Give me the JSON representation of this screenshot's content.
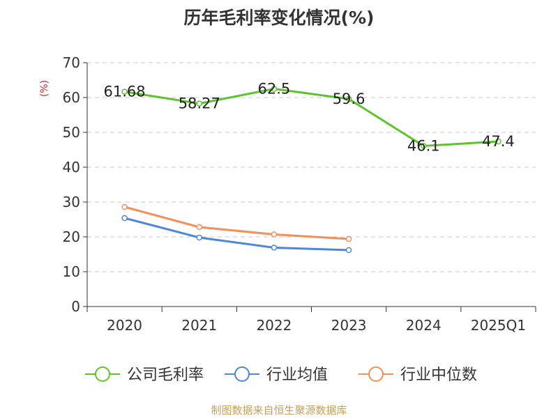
{
  "chart_data": {
    "type": "line",
    "title": "历年毛利率变化情况(%)",
    "ylabel": "(%)",
    "xlabel": "",
    "ylim": [
      0,
      70
    ],
    "yticks": [
      0,
      10,
      20,
      30,
      40,
      50,
      60,
      70
    ],
    "categories": [
      "2020",
      "2021",
      "2022",
      "2023",
      "2024",
      "2025Q1"
    ],
    "grid": true,
    "legend_position": "bottom",
    "series": [
      {
        "name": "公司毛利率",
        "color": "#5cc42a",
        "values": [
          61.68,
          58.27,
          62.5,
          59.6,
          46.1,
          47.4
        ],
        "labels": [
          "61.68",
          "58.27",
          "62.5",
          "59.6",
          "46.1",
          "47.4"
        ]
      },
      {
        "name": "行业均值",
        "color": "#4f86dc",
        "values": [
          25.4,
          19.8,
          16.9,
          16.2,
          null,
          null
        ]
      },
      {
        "name": "行业中位数",
        "color": "#f3905a",
        "values": [
          28.6,
          22.8,
          20.7,
          19.4,
          null,
          null
        ]
      }
    ]
  },
  "source": "制图数据来自恒生聚源数据库"
}
